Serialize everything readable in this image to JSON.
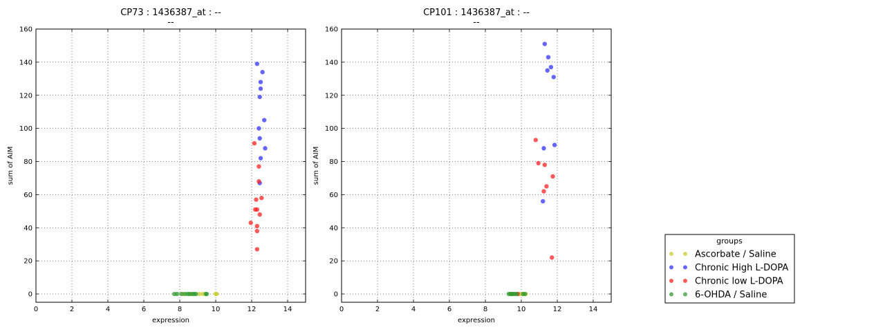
{
  "chart_data": [
    {
      "type": "scatter",
      "title": "CP73 : 1436387_at : --",
      "subtitle": "--",
      "xlabel": "expression",
      "ylabel": "sum of AIM",
      "xlim": [
        0,
        15
      ],
      "ylim": [
        -5,
        160
      ],
      "xticks": [
        "0",
        "2",
        "4",
        "6",
        "8",
        "10",
        "12",
        "14"
      ],
      "yticks": [
        "0",
        "20",
        "40",
        "60",
        "80",
        "100",
        "120",
        "140",
        "160"
      ],
      "grid": true,
      "series": [
        {
          "name": "Ascorbate / Saline",
          "color": "#cccc33",
          "points": [
            [
              8.6,
              0
            ],
            [
              9.1,
              0
            ],
            [
              9.3,
              0
            ],
            [
              10.0,
              0
            ],
            [
              10.05,
              0
            ],
            [
              8.2,
              0
            ]
          ]
        },
        {
          "name": "Chronic High L-DOPA",
          "color": "#3333ff",
          "points": [
            [
              12.3,
              139
            ],
            [
              12.6,
              134
            ],
            [
              12.5,
              128
            ],
            [
              12.5,
              124
            ],
            [
              12.45,
              119
            ],
            [
              12.7,
              105
            ],
            [
              12.4,
              100
            ],
            [
              12.45,
              94
            ],
            [
              12.75,
              88
            ],
            [
              12.5,
              82
            ],
            [
              12.45,
              67
            ]
          ]
        },
        {
          "name": "Chronic low L-DOPA",
          "color": "#ff2222",
          "points": [
            [
              12.15,
              91
            ],
            [
              12.4,
              77
            ],
            [
              12.4,
              68
            ],
            [
              12.25,
              57
            ],
            [
              12.55,
              58
            ],
            [
              12.2,
              51
            ],
            [
              12.3,
              51
            ],
            [
              12.45,
              48
            ],
            [
              11.95,
              43
            ],
            [
              12.3,
              41
            ],
            [
              12.3,
              38
            ],
            [
              12.3,
              27
            ]
          ]
        },
        {
          "name": "6-OHDA / Saline",
          "color": "#339933",
          "points": [
            [
              7.7,
              0
            ],
            [
              7.85,
              0
            ],
            [
              8.1,
              0
            ],
            [
              8.3,
              0
            ],
            [
              8.45,
              0
            ],
            [
              8.55,
              0
            ],
            [
              8.7,
              0
            ],
            [
              8.8,
              0
            ],
            [
              8.9,
              0
            ],
            [
              9.45,
              0
            ],
            [
              9.5,
              0
            ]
          ]
        }
      ]
    },
    {
      "type": "scatter",
      "title": "CP101 : 1436387_at : --",
      "subtitle": "--",
      "xlabel": "expression",
      "ylabel": "sum of AIM",
      "xlim": [
        0,
        15
      ],
      "ylim": [
        -5,
        160
      ],
      "xticks": [
        "0",
        "2",
        "4",
        "6",
        "8",
        "10",
        "12",
        "14"
      ],
      "yticks": [
        "0",
        "20",
        "40",
        "60",
        "80",
        "100",
        "120",
        "140",
        "160"
      ],
      "grid": true,
      "series": [
        {
          "name": "Ascorbate / Saline",
          "color": "#cccc33",
          "points": [
            [
              9.5,
              0
            ],
            [
              9.9,
              0
            ],
            [
              10.25,
              0
            ],
            [
              10.05,
              0
            ]
          ]
        },
        {
          "name": "Chronic High L-DOPA",
          "color": "#3333ff",
          "points": [
            [
              11.3,
              151
            ],
            [
              11.5,
              143
            ],
            [
              11.45,
              135
            ],
            [
              11.65,
              137
            ],
            [
              11.8,
              131
            ],
            [
              11.25,
              88
            ],
            [
              11.85,
              90
            ],
            [
              11.2,
              56
            ]
          ]
        },
        {
          "name": "Chronic low L-DOPA",
          "color": "#ff2222",
          "points": [
            [
              10.8,
              93
            ],
            [
              10.95,
              79
            ],
            [
              11.3,
              78
            ],
            [
              11.75,
              71
            ],
            [
              11.4,
              65
            ],
            [
              11.25,
              62
            ],
            [
              11.7,
              22
            ],
            [
              9.8,
              0
            ]
          ]
        },
        {
          "name": "6-OHDA / Saline",
          "color": "#339933",
          "points": [
            [
              9.3,
              0
            ],
            [
              9.4,
              0
            ],
            [
              9.55,
              0
            ],
            [
              9.65,
              0
            ],
            [
              9.75,
              0
            ],
            [
              10.1,
              0
            ],
            [
              10.2,
              0
            ],
            [
              9.45,
              0
            ]
          ]
        }
      ]
    }
  ],
  "legend": {
    "title": "groups",
    "placement": "lower-right",
    "items": [
      {
        "label": "Ascorbate / Saline",
        "color": "#cccc33"
      },
      {
        "label": "Chronic High L-DOPA",
        "color": "#3333ff"
      },
      {
        "label": "Chronic low L-DOPA",
        "color": "#ff2222"
      },
      {
        "label": "6-OHDA / Saline",
        "color": "#339933"
      }
    ]
  }
}
